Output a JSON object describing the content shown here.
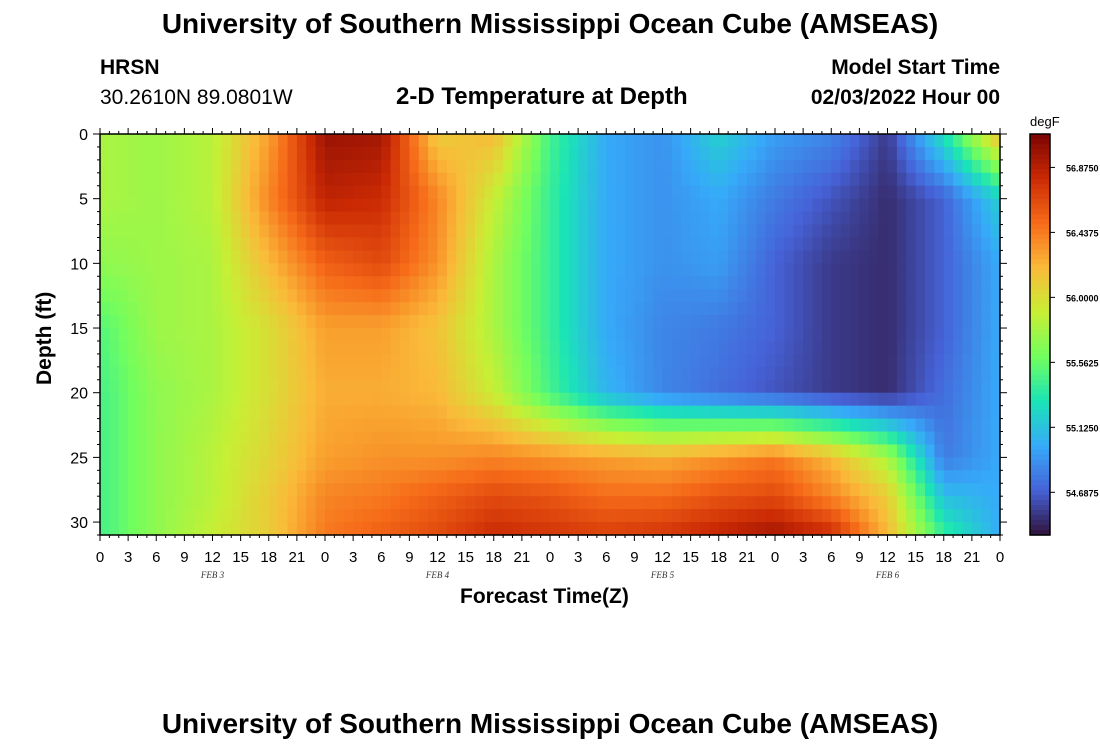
{
  "header": {
    "title_top": "University of Southern Mississippi Ocean Cube (AMSEAS)",
    "station_name": "HRSN",
    "station_coords": "30.2610N  89.0801W",
    "plot_title": "2-D Temperature at Depth",
    "model_start_label": "Model Start Time",
    "model_start_value": "02/03/2022 Hour 00",
    "title_bottom": "University of Southern Mississippi Ocean Cube (AMSEAS)"
  },
  "chart_data": {
    "type": "heatmap",
    "title": "2-D Temperature at Depth",
    "xlabel": "Forecast Time(Z)",
    "ylabel": "Depth (ft)",
    "x_tick_labels": [
      "0",
      "3",
      "6",
      "9",
      "12",
      "15",
      "18",
      "21",
      "0",
      "3",
      "6",
      "9",
      "12",
      "15",
      "18",
      "21",
      "0",
      "3",
      "6",
      "9",
      "12",
      "15",
      "18",
      "21",
      "0",
      "3",
      "6",
      "9",
      "12",
      "15",
      "18",
      "21",
      "0"
    ],
    "x_range_hours": [
      0,
      96
    ],
    "day_labels": [
      {
        "text": "FEB 3",
        "hour": 12
      },
      {
        "text": "FEB 4",
        "hour": 36
      },
      {
        "text": "FEB 5",
        "hour": 60
      },
      {
        "text": "FEB 6",
        "hour": 84
      }
    ],
    "y_ticks": [
      0,
      5,
      10,
      15,
      20,
      25,
      30
    ],
    "y_range_ft": [
      0,
      31
    ],
    "y_inverted": true,
    "colorbar": {
      "unit": "degF",
      "range": [
        54.4,
        57.1
      ],
      "ticks": [
        56.875,
        56.4375,
        56.0,
        55.5625,
        55.125,
        54.6875
      ],
      "tick_labels": [
        "56.8750",
        "56.4375",
        "56.0000",
        "55.5625",
        "55.1250",
        "54.6875"
      ],
      "colormap": [
        "#30123b",
        "#4662d7",
        "#36aaf9",
        "#1ae4b6",
        "#72fe5e",
        "#c7ef34",
        "#faba39",
        "#f66b19",
        "#cb2a04",
        "#7a0403"
      ]
    },
    "x_times_hours": [
      0,
      6,
      12,
      18,
      24,
      30,
      36,
      42,
      48,
      54,
      60,
      66,
      72,
      78,
      84,
      90,
      96
    ],
    "depth_levels_ft": [
      0,
      5,
      10,
      15,
      20,
      25,
      28,
      31
    ],
    "values_degF": [
      [
        55.8,
        55.75,
        55.85,
        56.3,
        56.98,
        56.95,
        56.1,
        56.2,
        55.45,
        55.0,
        54.9,
        55.2,
        54.95,
        54.85,
        54.55,
        55.3,
        56.2
      ],
      [
        55.8,
        55.75,
        55.85,
        56.4,
        56.85,
        56.8,
        56.4,
        55.9,
        55.4,
        55.0,
        54.9,
        55.0,
        54.8,
        54.65,
        54.5,
        54.7,
        55.2
      ],
      [
        55.7,
        55.75,
        55.8,
        56.2,
        56.55,
        56.65,
        56.35,
        55.8,
        55.4,
        55.0,
        54.9,
        54.95,
        54.7,
        54.55,
        54.5,
        54.7,
        55.0
      ],
      [
        55.5,
        55.75,
        55.8,
        56.0,
        56.3,
        56.3,
        56.15,
        55.8,
        55.4,
        55.0,
        54.85,
        54.8,
        54.7,
        54.55,
        54.5,
        54.7,
        55.0
      ],
      [
        55.45,
        55.7,
        55.8,
        56.0,
        56.25,
        56.25,
        56.2,
        55.9,
        55.45,
        55.05,
        54.85,
        54.75,
        54.65,
        54.55,
        54.5,
        54.75,
        55.0
      ],
      [
        55.45,
        55.7,
        55.85,
        56.05,
        56.3,
        56.35,
        56.35,
        56.4,
        56.35,
        56.3,
        56.25,
        56.35,
        56.45,
        56.2,
        55.8,
        54.8,
        55.0
      ],
      [
        55.45,
        55.7,
        55.85,
        56.1,
        56.4,
        56.45,
        56.55,
        56.65,
        56.6,
        56.5,
        56.5,
        56.6,
        56.65,
        56.4,
        56.1,
        55.1,
        55.0
      ],
      [
        55.45,
        55.7,
        55.9,
        56.1,
        56.45,
        56.55,
        56.65,
        56.8,
        56.75,
        56.7,
        56.75,
        56.85,
        56.95,
        56.8,
        56.2,
        55.4,
        55.0
      ]
    ]
  }
}
